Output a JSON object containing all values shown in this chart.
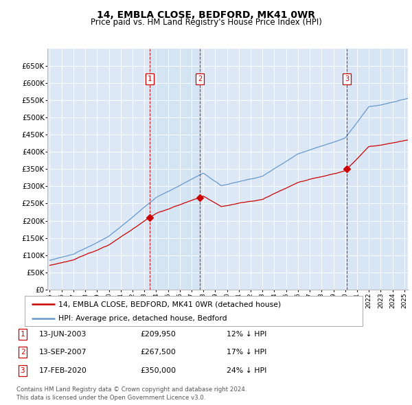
{
  "title": "14, EMBLA CLOSE, BEDFORD, MK41 0WR",
  "subtitle": "Price paid vs. HM Land Registry's House Price Index (HPI)",
  "ylim": [
    0,
    700000
  ],
  "yticks": [
    0,
    50000,
    100000,
    150000,
    200000,
    250000,
    300000,
    350000,
    400000,
    450000,
    500000,
    550000,
    600000,
    650000
  ],
  "ytick_labels": [
    "£0",
    "£50K",
    "£100K",
    "£150K",
    "£200K",
    "£250K",
    "£300K",
    "£350K",
    "£400K",
    "£450K",
    "£500K",
    "£550K",
    "£600K",
    "£650K"
  ],
  "sale_times": [
    2003.45,
    2007.7,
    2020.13
  ],
  "sale_prices": [
    209950,
    267500,
    350000
  ],
  "sale_labels": [
    "1",
    "2",
    "3"
  ],
  "hpi_color": "#6699cc",
  "sold_color": "#cc0000",
  "grid_color": "#cccccc",
  "plot_bg_color": "#dce8f5",
  "shade_color": "#c8ddf0",
  "legend_line1": "14, EMBLA CLOSE, BEDFORD, MK41 0WR (detached house)",
  "legend_line2": "HPI: Average price, detached house, Bedford",
  "table_rows": [
    {
      "num": "1",
      "date": "13-JUN-2003",
      "price": "£209,950",
      "note": "12% ↓ HPI"
    },
    {
      "num": "2",
      "date": "13-SEP-2007",
      "price": "£267,500",
      "note": "17% ↓ HPI"
    },
    {
      "num": "3",
      "date": "17-FEB-2020",
      "price": "£350,000",
      "note": "24% ↓ HPI"
    }
  ],
  "footnote1": "Contains HM Land Registry data © Crown copyright and database right 2024.",
  "footnote2": "This data is licensed under the Open Government Licence v3.0."
}
